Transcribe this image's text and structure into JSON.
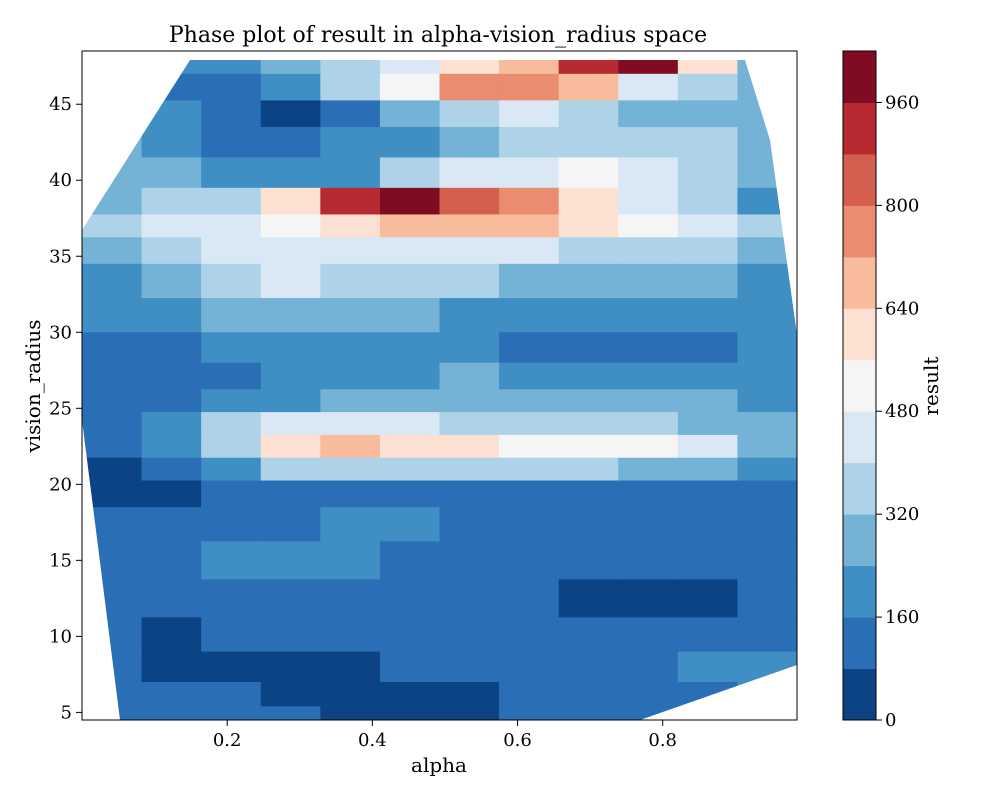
{
  "chart_data": {
    "type": "contourf",
    "title": "Phase plot of result in alpha-vision_radius space",
    "xlabel": "alpha",
    "ylabel": "vision_radius",
    "colorbar_label": "result",
    "xlim": [
      0.0,
      0.985
    ],
    "ylim": [
      4.5,
      48.5
    ],
    "x_ticks": [
      {
        "value": 0.2,
        "label": "0.2"
      },
      {
        "value": 0.4,
        "label": "0.4"
      },
      {
        "value": 0.6,
        "label": "0.6"
      },
      {
        "value": 0.8,
        "label": "0.8"
      }
    ],
    "y_ticks": [
      {
        "value": 5,
        "label": "5"
      },
      {
        "value": 10,
        "label": "10"
      },
      {
        "value": 15,
        "label": "15"
      },
      {
        "value": 20,
        "label": "20"
      },
      {
        "value": 25,
        "label": "25"
      },
      {
        "value": 30,
        "label": "30"
      },
      {
        "value": 35,
        "label": "35"
      },
      {
        "value": 40,
        "label": "40"
      },
      {
        "value": 45,
        "label": "45"
      }
    ],
    "colorbar": {
      "levels": [
        0,
        80,
        160,
        240,
        320,
        400,
        480,
        560,
        640,
        720,
        800,
        880,
        960,
        1040
      ],
      "colors": [
        "#0b4384",
        "#2a6fb6",
        "#3f8fc4",
        "#74b2d6",
        "#aed3e8",
        "#d9e8f4",
        "#f5f5f5",
        "#fce0d1",
        "#f8bb9c",
        "#e98c6f",
        "#d45f4f",
        "#b82a31",
        "#7f0c23"
      ],
      "ticks": [
        {
          "value": 0,
          "label": "0"
        },
        {
          "value": 160,
          "label": "160"
        },
        {
          "value": 320,
          "label": "320"
        },
        {
          "value": 480,
          "label": "480"
        },
        {
          "value": 640,
          "label": "640"
        },
        {
          "value": 800,
          "label": "800"
        },
        {
          "value": 960,
          "label": "960"
        }
      ]
    },
    "bands": [
      {
        "y": 48.0,
        "values": [
          140,
          160,
          190,
          260,
          350,
          450,
          560,
          700,
          900,
          1000,
          600,
          280
        ]
      },
      {
        "y": 46.0,
        "values": [
          170,
          150,
          110,
          170,
          330,
          500,
          740,
          780,
          640,
          460,
          340,
          270
        ]
      },
      {
        "y": 44.5,
        "values": [
          200,
          170,
          120,
          70,
          100,
          240,
          380,
          420,
          360,
          300,
          280,
          240
        ]
      },
      {
        "y": 42.5,
        "values": [
          240,
          200,
          150,
          110,
          160,
          230,
          300,
          330,
          340,
          360,
          330,
          280
        ]
      },
      {
        "y": 40.5,
        "values": [
          260,
          250,
          210,
          170,
          230,
          320,
          400,
          470,
          500,
          460,
          380,
          300
        ]
      },
      {
        "y": 38.5,
        "values": [
          300,
          330,
          380,
          580,
          900,
          960,
          860,
          720,
          580,
          470,
          350,
          200
        ]
      },
      {
        "y": 37.0,
        "values": [
          330,
          400,
          470,
          540,
          600,
          680,
          700,
          650,
          560,
          500,
          440,
          360
        ]
      },
      {
        "y": 35.5,
        "values": [
          280,
          360,
          410,
          440,
          470,
          460,
          430,
          400,
          380,
          360,
          330,
          300
        ]
      },
      {
        "y": 33.5,
        "values": [
          230,
          300,
          370,
          410,
          380,
          350,
          320,
          300,
          280,
          260,
          240,
          220
        ]
      },
      {
        "y": 31.0,
        "values": [
          180,
          220,
          280,
          300,
          280,
          250,
          230,
          210,
          190,
          170,
          160,
          160
        ]
      },
      {
        "y": 29.0,
        "values": [
          130,
          150,
          170,
          180,
          180,
          170,
          160,
          150,
          140,
          140,
          150,
          160
        ]
      },
      {
        "y": 27.0,
        "values": [
          100,
          110,
          140,
          170,
          200,
          230,
          240,
          230,
          210,
          200,
          190,
          180
        ]
      },
      {
        "y": 25.5,
        "values": [
          120,
          140,
          170,
          200,
          240,
          270,
          290,
          290,
          280,
          260,
          240,
          210
        ]
      },
      {
        "y": 24.0,
        "values": [
          130,
          200,
          340,
          400,
          420,
          400,
          380,
          360,
          350,
          330,
          300,
          260
        ]
      },
      {
        "y": 22.5,
        "values": [
          110,
          180,
          380,
          560,
          640,
          610,
          560,
          520,
          500,
          480,
          400,
          300
        ]
      },
      {
        "y": 21.0,
        "values": [
          70,
          100,
          220,
          330,
          380,
          380,
          360,
          340,
          330,
          300,
          260,
          230
        ]
      },
      {
        "y": 19.5,
        "values": [
          40,
          50,
          90,
          130,
          140,
          140,
          130,
          120,
          110,
          110,
          120,
          130
        ]
      },
      {
        "y": 17.5,
        "values": [
          100,
          120,
          140,
          150,
          160,
          160,
          150,
          140,
          130,
          120,
          120,
          130
        ]
      },
      {
        "y": 15.0,
        "values": [
          120,
          140,
          170,
          180,
          170,
          150,
          140,
          130,
          120,
          110,
          100,
          120
        ]
      },
      {
        "y": 12.5,
        "values": [
          110,
          130,
          150,
          150,
          140,
          130,
          110,
          90,
          60,
          40,
          60,
          100
        ]
      },
      {
        "y": 10.0,
        "values": [
          120,
          60,
          80,
          100,
          110,
          120,
          130,
          130,
          120,
          110,
          120,
          150
        ]
      },
      {
        "y": 8.0,
        "values": [
          120,
          60,
          40,
          50,
          70,
          90,
          110,
          130,
          140,
          150,
          160,
          170
        ]
      },
      {
        "y": 6.0,
        "values": [
          140,
          120,
          100,
          60,
          40,
          50,
          70,
          100,
          120,
          140,
          150,
          160
        ]
      },
      {
        "y": 4.8,
        "values": [
          150,
          140,
          120,
          80,
          40,
          40,
          60,
          90,
          110,
          130,
          140,
          150
        ]
      }
    ]
  }
}
